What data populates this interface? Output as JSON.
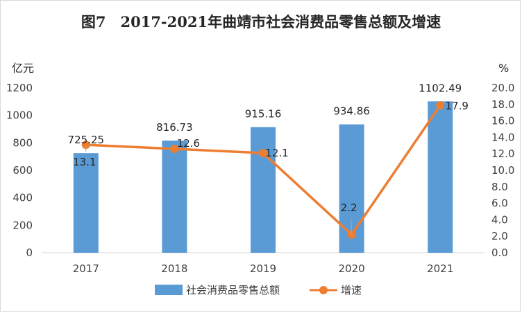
{
  "chart_data": {
    "type": "bar+line",
    "title": "图7　2017-2021年曲靖市社会消费品零售总额及增速",
    "categories": [
      "2017",
      "2018",
      "2019",
      "2020",
      "2021"
    ],
    "series": [
      {
        "name": "社会消费品零售总额",
        "type": "bar",
        "axis": "left",
        "color": "#5b9bd5",
        "values": [
          725.25,
          816.73,
          915.16,
          934.86,
          1102.49
        ],
        "labels": [
          "725.25",
          "816.73",
          "915.16",
          "934.86",
          "1102.49"
        ]
      },
      {
        "name": "增速",
        "type": "line",
        "axis": "right",
        "color": "#ed7d31",
        "values": [
          13.1,
          12.6,
          12.1,
          2.2,
          17.9
        ],
        "labels": [
          "13.1",
          "12.6",
          "12.1",
          "2.2",
          "17.9"
        ]
      }
    ],
    "y_left": {
      "unit": "亿元",
      "range": [
        0,
        1200
      ],
      "ticks": [
        "0",
        "200",
        "400",
        "600",
        "800",
        "1000",
        "1200"
      ]
    },
    "y_right": {
      "unit": "%",
      "range": [
        0,
        20
      ],
      "ticks": [
        "0.0",
        "2.0",
        "4.0",
        "6.0",
        "8.0",
        "10.0",
        "12.0",
        "14.0",
        "16.0",
        "18.0",
        "20.0"
      ]
    },
    "grid": false,
    "legend": "bottom"
  }
}
